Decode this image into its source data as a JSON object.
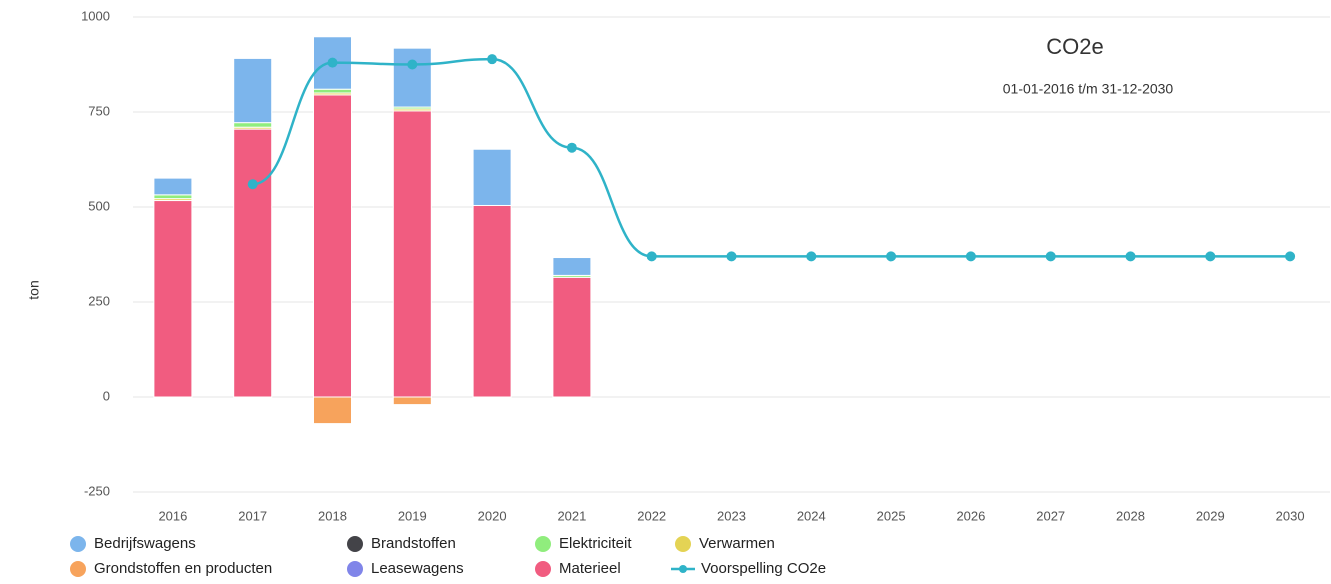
{
  "chart_data": {
    "type": "bar",
    "title": "CO2e",
    "subtitle": "01-01-2016 t/m 31-12-2030",
    "y_label": "ton",
    "categories": [
      "2016",
      "2017",
      "2018",
      "2019",
      "2020",
      "2021",
      "2022",
      "2023",
      "2024",
      "2025",
      "2026",
      "2027",
      "2028",
      "2029",
      "2030"
    ],
    "ylim": [
      -250,
      1000
    ],
    "yticks": [
      -250,
      0,
      250,
      500,
      750,
      1000
    ],
    "grid": true,
    "stacked": true,
    "legend": "bottom",
    "series": [
      {
        "name": "Bedrijfswagens",
        "color": "#7cb5ec",
        "values": [
          44,
          169,
          138,
          155,
          148,
          47,
          null,
          null,
          null,
          null,
          null,
          null,
          null,
          null,
          null
        ]
      },
      {
        "name": "Brandstoffen",
        "color": "#434348",
        "values": [
          0,
          0,
          0,
          0,
          0,
          0,
          null,
          null,
          null,
          null,
          null,
          null,
          null,
          null,
          null
        ]
      },
      {
        "name": "Elektriciteit",
        "color": "#90ed7d",
        "values": [
          10,
          12,
          10,
          5,
          0,
          5,
          null,
          null,
          null,
          null,
          null,
          null,
          null,
          null,
          null
        ]
      },
      {
        "name": "Verwarmen",
        "color": "#e4d354",
        "values": [
          5,
          5,
          5,
          5,
          0,
          0,
          null,
          null,
          null,
          null,
          null,
          null,
          null,
          null,
          null
        ]
      },
      {
        "name": "Grondstoffen en producten",
        "color": "#f7a35c",
        "values": [
          0,
          0,
          -70,
          -20,
          0,
          0,
          null,
          null,
          null,
          null,
          null,
          null,
          null,
          null,
          null
        ]
      },
      {
        "name": "Leasewagens",
        "color": "#8085e9",
        "values": [
          0,
          0,
          0,
          0,
          0,
          0,
          null,
          null,
          null,
          null,
          null,
          null,
          null,
          null,
          null
        ]
      },
      {
        "name": "Materieel",
        "color": "#f15c80",
        "values": [
          517,
          705,
          795,
          753,
          504,
          315,
          null,
          null,
          null,
          null,
          null,
          null,
          null,
          null,
          null
        ]
      },
      {
        "name": "Voorspelling CO2e",
        "type": "line",
        "color": "#2fb3c8",
        "values": [
          null,
          560,
          880,
          875,
          889,
          656,
          370,
          370,
          370,
          370,
          370,
          370,
          370,
          370,
          370
        ]
      }
    ]
  }
}
